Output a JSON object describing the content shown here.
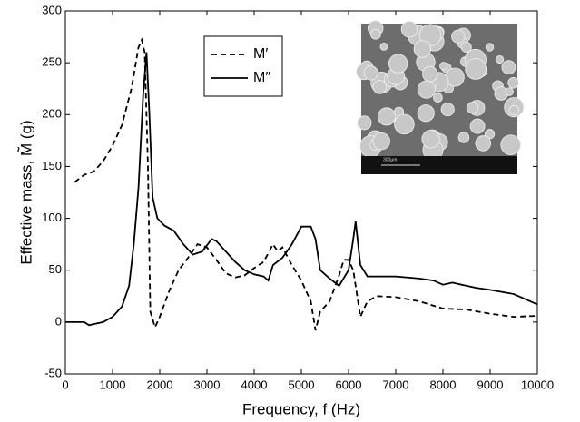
{
  "chart_data": {
    "type": "line",
    "x_label": "Frequency, f (Hz)",
    "y_label": "Effective mass, M̃ (g)",
    "xlim": [
      0,
      10000
    ],
    "ylim": [
      -50,
      300
    ],
    "xticks": [
      0,
      1000,
      2000,
      3000,
      4000,
      5000,
      6000,
      7000,
      8000,
      9000,
      10000
    ],
    "yticks": [
      -50,
      0,
      50,
      100,
      150,
      200,
      250,
      300
    ],
    "legend": "upper-center",
    "inset_scale_label": "300µm",
    "series": [
      {
        "name": "M′",
        "color": "#000000",
        "dash": true,
        "x": [
          200,
          400,
          600,
          800,
          1000,
          1200,
          1400,
          1550,
          1620,
          1680,
          1750,
          1800,
          1900,
          2000,
          2200,
          2400,
          2600,
          2800,
          3000,
          3200,
          3400,
          3600,
          3800,
          4000,
          4200,
          4400,
          4500,
          4600,
          4800,
          5000,
          5200,
          5300,
          5400,
          5600,
          5800,
          5900,
          6000,
          6100,
          6250,
          6400,
          6600,
          7000,
          7500,
          8000,
          8500,
          9000,
          9500,
          10000
        ],
        "values": [
          135,
          142,
          145,
          155,
          170,
          190,
          225,
          265,
          272,
          260,
          150,
          10,
          -5,
          5,
          30,
          50,
          62,
          75,
          72,
          60,
          47,
          43,
          45,
          52,
          58,
          75,
          68,
          72,
          55,
          40,
          20,
          -8,
          10,
          20,
          45,
          60,
          60,
          50,
          5,
          20,
          25,
          24,
          20,
          13,
          12,
          8,
          5,
          6
        ]
      },
      {
        "name": "M″",
        "color": "#000000",
        "dash": false,
        "x": [
          0,
          400,
          500,
          800,
          1000,
          1200,
          1350,
          1450,
          1550,
          1650,
          1720,
          1780,
          1850,
          1950,
          2100,
          2300,
          2500,
          2700,
          2900,
          3100,
          3200,
          3400,
          3600,
          3800,
          4000,
          4200,
          4300,
          4400,
          4600,
          4800,
          5000,
          5200,
          5300,
          5400,
          5600,
          5800,
          6000,
          6100,
          6150,
          6250,
          6400,
          7000,
          7500,
          7800,
          8000,
          8200,
          8500,
          8700,
          9000,
          9500,
          10000
        ],
        "values": [
          0,
          0,
          -3,
          0,
          5,
          15,
          35,
          75,
          130,
          220,
          260,
          200,
          120,
          100,
          93,
          88,
          75,
          65,
          68,
          80,
          78,
          68,
          58,
          50,
          46,
          44,
          40,
          55,
          62,
          75,
          92,
          92,
          80,
          50,
          42,
          35,
          50,
          80,
          97,
          55,
          44,
          44,
          42,
          40,
          36,
          38,
          35,
          33,
          31,
          27,
          17
        ]
      }
    ]
  }
}
